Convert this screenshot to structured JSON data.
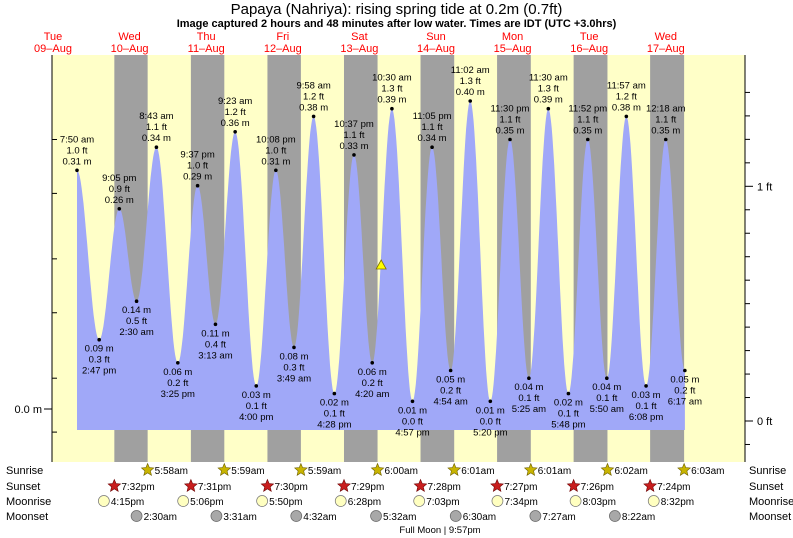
{
  "header": {
    "title": "Papaya (Nahriya): rising  spring tide at 0.2m (0.7ft)",
    "subtitle": "Image captured 2 hours and 48 minutes after low water. Times are IDT (UTC +3.0hrs)"
  },
  "colors": {
    "night": "#a0a0a0",
    "day": "#ffffc8",
    "tide_fill": "#a0a8f8",
    "date_red": "#ff0000",
    "sun_star": "#c8b400",
    "sunset_star": "#c81e1e",
    "moon_rise": "#ffffc0",
    "moon_set": "#a8a8a8",
    "current_marker": "#ffff00"
  },
  "chart_data": {
    "type": "area",
    "title": "Papaya (Nahriya): rising  spring tide at 0.2m (0.7ft)",
    "subtitle": "Image captured 2 hours and 48 minutes after low water. Times are IDT (UTC +3.0hrs)",
    "ylabel_left": "0.0 m",
    "ylabels_right": [
      "1 ft",
      "0 ft"
    ],
    "ylim_m": [
      -0.1,
      0.47
    ],
    "days": [
      {
        "dow": "Tue",
        "date": "09–Aug"
      },
      {
        "dow": "Wed",
        "date": "10–Aug"
      },
      {
        "dow": "Thu",
        "date": "11–Aug"
      },
      {
        "dow": "Fri",
        "date": "12–Aug"
      },
      {
        "dow": "Sat",
        "date": "13–Aug"
      },
      {
        "dow": "Sun",
        "date": "14–Aug"
      },
      {
        "dow": "Mon",
        "date": "15–Aug"
      },
      {
        "dow": "Tue",
        "date": "16–Aug"
      },
      {
        "dow": "Wed",
        "date": "17–Aug"
      }
    ],
    "tides": [
      {
        "type": "high",
        "time": "7:50 am",
        "m": "0.31 m",
        "ft": "1.0 ft",
        "value": 0.31
      },
      {
        "type": "low",
        "time": "2:47 pm",
        "m": "0.09 m",
        "ft": "0.3 ft",
        "value": 0.09
      },
      {
        "type": "high",
        "time": "9:05 pm",
        "m": "0.26 m",
        "ft": "0.9 ft",
        "value": 0.26
      },
      {
        "type": "low",
        "time": "2:30 am",
        "m": "0.14 m",
        "ft": "0.5 ft",
        "value": 0.14
      },
      {
        "type": "high",
        "time": "8:43 am",
        "m": "0.34 m",
        "ft": "1.1 ft",
        "value": 0.34
      },
      {
        "type": "low",
        "time": "3:25 pm",
        "m": "0.06 m",
        "ft": "0.2 ft",
        "value": 0.06
      },
      {
        "type": "high",
        "time": "9:37 pm",
        "m": "0.29 m",
        "ft": "1.0 ft",
        "value": 0.29
      },
      {
        "type": "low",
        "time": "3:13 am",
        "m": "0.11 m",
        "ft": "0.4 ft",
        "value": 0.11
      },
      {
        "type": "high",
        "time": "9:23 am",
        "m": "0.36 m",
        "ft": "1.2 ft",
        "value": 0.36
      },
      {
        "type": "low",
        "time": "4:00 pm",
        "m": "0.03 m",
        "ft": "0.1 ft",
        "value": 0.03
      },
      {
        "type": "high",
        "time": "10:08 pm",
        "m": "0.31 m",
        "ft": "1.0 ft",
        "value": 0.31
      },
      {
        "type": "low",
        "time": "3:49 am",
        "m": "0.08 m",
        "ft": "0.3 ft",
        "value": 0.08
      },
      {
        "type": "high",
        "time": "9:58 am",
        "m": "0.38 m",
        "ft": "1.2 ft",
        "value": 0.38
      },
      {
        "type": "low",
        "time": "4:28 pm",
        "m": "0.02 m",
        "ft": "0.1 ft",
        "value": 0.02
      },
      {
        "type": "high",
        "time": "10:37 pm",
        "m": "0.33 m",
        "ft": "1.1 ft",
        "value": 0.33
      },
      {
        "type": "low",
        "time": "4:20 am",
        "m": "0.06 m",
        "ft": "0.2 ft",
        "value": 0.06
      },
      {
        "type": "high",
        "time": "10:30 am",
        "m": "0.39 m",
        "ft": "1.3 ft",
        "value": 0.39
      },
      {
        "type": "low",
        "time": "4:57 pm",
        "m": "0.01 m",
        "ft": "0.0 ft",
        "value": 0.01
      },
      {
        "type": "high",
        "time": "11:05 pm",
        "m": "0.34 m",
        "ft": "1.1 ft",
        "value": 0.34
      },
      {
        "type": "low",
        "time": "4:54 am",
        "m": "0.05 m",
        "ft": "0.2 ft",
        "value": 0.05
      },
      {
        "type": "high",
        "time": "11:02 am",
        "m": "0.40 m",
        "ft": "1.3 ft",
        "value": 0.4
      },
      {
        "type": "low",
        "time": "5:20 pm",
        "m": "0.01 m",
        "ft": "0.0 ft",
        "value": 0.01
      },
      {
        "type": "high",
        "time": "11:30 pm",
        "m": "0.35 m",
        "ft": "1.1 ft",
        "value": 0.35
      },
      {
        "type": "low",
        "time": "5:25 am",
        "m": "0.04 m",
        "ft": "0.1 ft",
        "value": 0.04
      },
      {
        "type": "high",
        "time": "11:30 am",
        "m": "0.39 m",
        "ft": "1.3 ft",
        "value": 0.39
      },
      {
        "type": "low",
        "time": "5:48 pm",
        "m": "0.02 m",
        "ft": "0.1 ft",
        "value": 0.02
      },
      {
        "type": "high",
        "time": "11:52 pm",
        "m": "0.35 m",
        "ft": "1.1 ft",
        "value": 0.35
      },
      {
        "type": "low",
        "time": "5:50 am",
        "m": "0.04 m",
        "ft": "0.1 ft",
        "value": 0.04
      },
      {
        "type": "high",
        "time": "11:57 am",
        "m": "0.38 m",
        "ft": "1.2 ft",
        "value": 0.38
      },
      {
        "type": "low",
        "time": "6:08 pm",
        "m": "0.03 m",
        "ft": "0.1 ft",
        "value": 0.03
      },
      {
        "type": "high",
        "time": "12:18 am",
        "m": "0.35 m",
        "ft": "1.1 ft",
        "value": 0.35
      },
      {
        "type": "low",
        "time": "6:17 am",
        "m": "0.05 m",
        "ft": "0.2 ft",
        "value": 0.05
      }
    ],
    "current_level_m": 0.2,
    "row_labels": [
      "Sunrise",
      "Sunset",
      "Moonrise",
      "Moonset"
    ],
    "sunrise": [
      "5:58am",
      "5:59am",
      "5:59am",
      "6:00am",
      "6:01am",
      "6:01am",
      "6:02am",
      "6:03am"
    ],
    "sunset": [
      "7:32pm",
      "7:31pm",
      "7:30pm",
      "7:29pm",
      "7:28pm",
      "7:27pm",
      "7:26pm",
      "7:24pm"
    ],
    "moonrise": [
      "4:15pm",
      "5:06pm",
      "5:50pm",
      "6:28pm",
      "7:03pm",
      "7:34pm",
      "8:03pm",
      "8:32pm"
    ],
    "moonset": [
      "2:30am",
      "3:31am",
      "4:32am",
      "5:32am",
      "6:30am",
      "7:27am",
      "8:22am"
    ],
    "footer": "Full Moon | 9:57pm"
  }
}
